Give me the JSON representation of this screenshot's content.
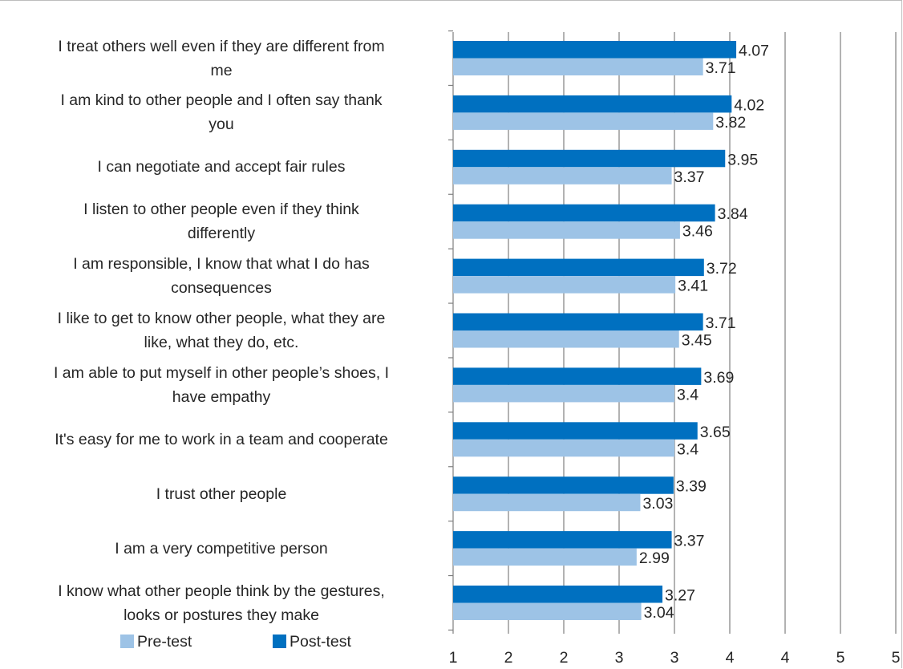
{
  "chart_data": {
    "type": "bar",
    "orientation": "horizontal",
    "title": "",
    "xlabel": "",
    "ylabel": "",
    "xlim": [
      1,
      5.8
    ],
    "x_tick_labels": [
      "1",
      "2",
      "2",
      "3",
      "3",
      "4",
      "4",
      "5",
      "5"
    ],
    "grid": true,
    "legend_position": "bottom-left",
    "categories": [
      "I treat others well even if they are different from me",
      "I am kind to other people and I often say thank you",
      "I can negotiate and accept fair rules",
      "I listen to other people even if they think differently",
      "I am responsible, I know that what I do has consequences",
      "I like to get to know other people, what they are like, what they do, etc.",
      "I am able to put myself in other people’s shoes, I have empathy",
      "It's easy for me to work in a team and cooperate",
      "I trust other people",
      "I am a very competitive person",
      "I know what other people think by the gestures, looks or postures they make"
    ],
    "series": [
      {
        "name": "Pre-test",
        "color": "#9dc3e6",
        "values": [
          3.71,
          3.82,
          3.37,
          3.46,
          3.41,
          3.45,
          3.4,
          3.4,
          3.03,
          2.99,
          3.04
        ],
        "value_labels": [
          "3.71",
          "3.82",
          "3.37",
          "3.46",
          "3.41",
          "3.45",
          "3.4",
          "3.4",
          "3.03",
          "2.99",
          "3.04"
        ]
      },
      {
        "name": "Post-test",
        "color": "#0070c0",
        "values": [
          4.07,
          4.02,
          3.95,
          3.84,
          3.72,
          3.71,
          3.69,
          3.65,
          3.39,
          3.37,
          3.27
        ],
        "value_labels": [
          "4.07",
          "4.02",
          "3.95",
          "3.84",
          "3.72",
          "3.71",
          "3.69",
          "3.65",
          "3.39",
          "3.37",
          "3.27"
        ]
      }
    ]
  },
  "category_lines": [
    [
      "I treat others well even if they are different from",
      "me"
    ],
    [
      "I am kind to other people and I often say thank",
      "you"
    ],
    [
      "I can negotiate and accept fair rules"
    ],
    [
      "I listen to other people even if they think",
      "differently"
    ],
    [
      "I am responsible, I know that what I do has",
      "consequences"
    ],
    [
      "I like to get to know other people, what they are",
      "like, what they do, etc."
    ],
    [
      "I am able to put myself in other people’s shoes, I",
      "have empathy"
    ],
    [
      "It's easy for me to work in a team and cooperate"
    ],
    [
      "I trust other people"
    ],
    [
      "I am a very competitive person"
    ],
    [
      "I know what other people think by the gestures,",
      "looks or postures they make"
    ]
  ],
  "legend": {
    "items": [
      {
        "label": "Pre-test",
        "color": "#9dc3e6"
      },
      {
        "label": "Post-test",
        "color": "#0070c0"
      }
    ]
  }
}
